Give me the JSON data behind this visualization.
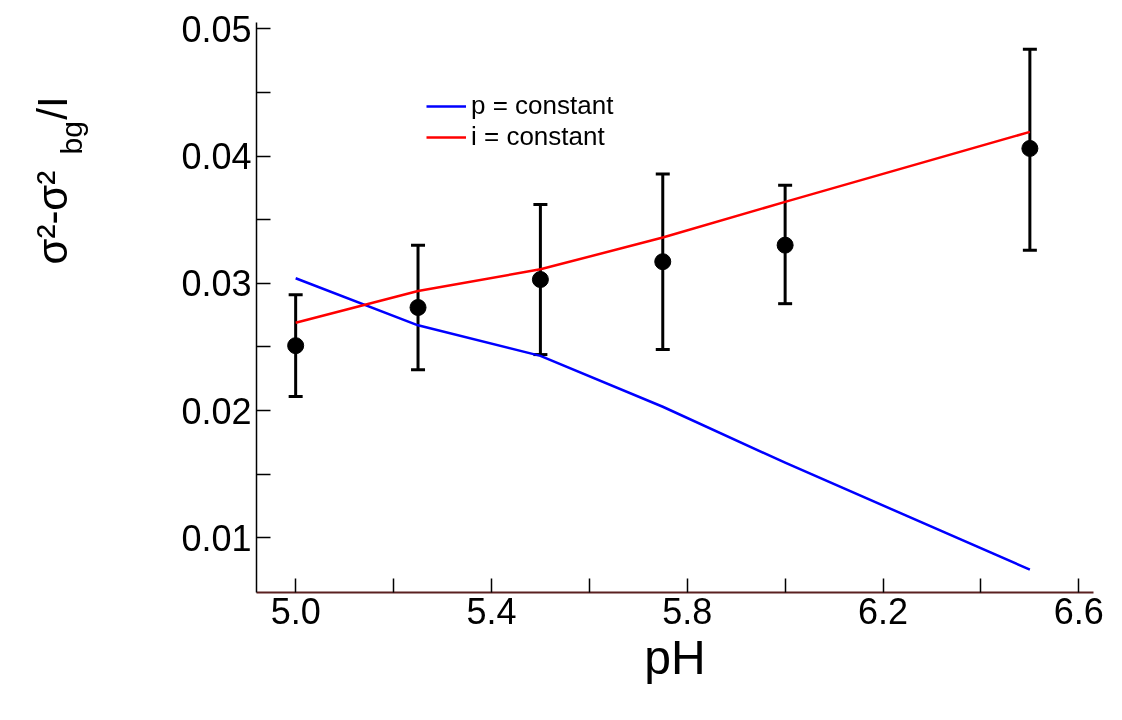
{
  "chart_data": {
    "type": "line",
    "xlabel": "pH",
    "ylabel": "σ²-σ²$_{bg}$/I",
    "xlim": [
      4.92,
      6.63
    ],
    "ylim": [
      0.0057,
      0.0505
    ],
    "xticks": [
      {
        "value": 5.0,
        "label": "5.0"
      },
      {
        "value": 5.2,
        "label": null
      },
      5.4,
      {
        "value": 5.6,
        "label": null
      },
      5.8,
      {
        "value": 6.0,
        "label": null
      },
      6.2,
      {
        "value": 6.4,
        "label": null
      },
      6.6
    ],
    "yticks": [
      0.01,
      {
        "value": 0.015,
        "label": null
      },
      0.02,
      {
        "value": 0.025,
        "label": null
      },
      0.03,
      {
        "value": 0.035,
        "label": null
      },
      0.04,
      {
        "value": 0.045,
        "label": null
      },
      0.05
    ],
    "grid": false,
    "legend": "top",
    "series": [
      {
        "name": "p = constant",
        "color": "#0000ff",
        "x": [
          5.0,
          5.25,
          5.5,
          5.75,
          6.0,
          6.5
        ],
        "values": [
          0.0304,
          0.0267,
          0.0243,
          0.0203,
          0.0159,
          0.0075
        ]
      },
      {
        "name": "i = constant",
        "color": "#ff0000",
        "x": [
          5.0,
          5.25,
          5.5,
          5.75,
          6.0,
          6.5
        ],
        "values": [
          0.0269,
          0.0294,
          0.0311,
          0.0336,
          0.0364,
          0.0419
        ]
      },
      {
        "type": "scatter",
        "color": "#000000",
        "marker": "circle",
        "x": [
          5.0,
          5.25,
          5.5,
          5.75,
          6.0,
          6.5
        ],
        "values": [
          0.0251,
          0.0281,
          0.0303,
          0.0317,
          0.033,
          0.0406
        ],
        "errors": [
          [
            0.0211,
            0.0291
          ],
          [
            0.0232,
            0.033
          ],
          [
            0.0244,
            0.0362
          ],
          [
            0.0248,
            0.0386
          ],
          [
            0.0284,
            0.0377
          ],
          [
            0.0326,
            0.0484
          ]
        ]
      }
    ]
  }
}
